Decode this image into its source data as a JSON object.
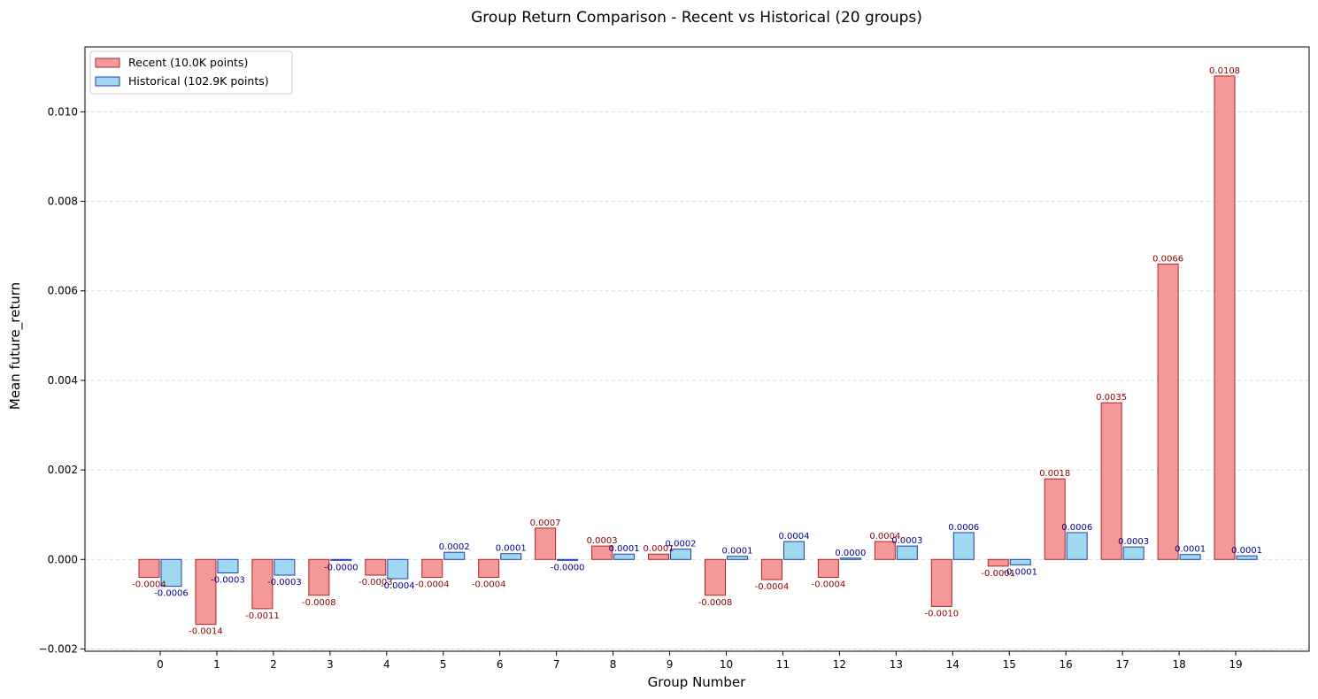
{
  "chart_data": {
    "type": "bar",
    "title": "Group Return Comparison - Recent vs Historical (20 groups)",
    "xlabel": "Group Number",
    "ylabel": "Mean future_return",
    "categories": [
      "0",
      "1",
      "2",
      "3",
      "4",
      "5",
      "6",
      "7",
      "8",
      "9",
      "10",
      "11",
      "12",
      "13",
      "14",
      "15",
      "16",
      "17",
      "18",
      "19"
    ],
    "ylim": [
      -0.00205,
      0.01145
    ],
    "yticks": [
      -0.002,
      0.0,
      0.002,
      0.004,
      0.006,
      0.008,
      0.01
    ],
    "ytick_labels": [
      "−0.002",
      "0.000",
      "0.002",
      "0.004",
      "0.006",
      "0.008",
      "0.010"
    ],
    "grid": true,
    "legend_position": "top-left",
    "series": [
      {
        "name": "Recent (10.0K points)",
        "color": "#f08080",
        "edge_color": "#b22222",
        "label_color": "#8b0000",
        "values": [
          -0.0004,
          -0.00145,
          -0.0011,
          -0.0008,
          -0.00035,
          -0.0004,
          -0.0004,
          0.0007,
          0.0003,
          0.00012,
          -0.0008,
          -0.00045,
          -0.0004,
          0.0004,
          -0.00105,
          -0.00015,
          0.0018,
          0.0035,
          0.0066,
          0.0108
        ],
        "labels": [
          "-0.0004",
          "-0.0014",
          "-0.0011",
          "-0.0008",
          "-0.0003",
          "-0.0004",
          "-0.0004",
          "0.0007",
          "0.0003",
          "0.0001",
          "-0.0008",
          "-0.0004",
          "-0.0004",
          "0.0004",
          "-0.0010",
          "-0.0001",
          "0.0018",
          "0.0035",
          "0.0066",
          "0.0108"
        ]
      },
      {
        "name": "Historical (102.9K points)",
        "color": "#87ceeb",
        "edge_color": "#1e3fb4",
        "label_color": "#00008b",
        "values": [
          -0.0006,
          -0.0003,
          -0.00035,
          -2e-05,
          -0.00043,
          0.00016,
          0.00013,
          -2e-05,
          0.00012,
          0.00023,
          7e-05,
          0.0004,
          3e-05,
          0.0003,
          0.0006,
          -0.00012,
          0.0006,
          0.00028,
          0.00011,
          8e-05
        ],
        "labels": [
          "-0.0006",
          "-0.0003",
          "-0.0003",
          "-0.0000",
          "-0.0004",
          "0.0002",
          "0.0001",
          "-0.0000",
          "0.0001",
          "0.0002",
          "0.0001",
          "0.0004",
          "0.0000",
          "0.0003",
          "0.0006",
          "-0.0001",
          "0.0006",
          "0.0003",
          "0.0001",
          "0.0001"
        ]
      }
    ]
  }
}
